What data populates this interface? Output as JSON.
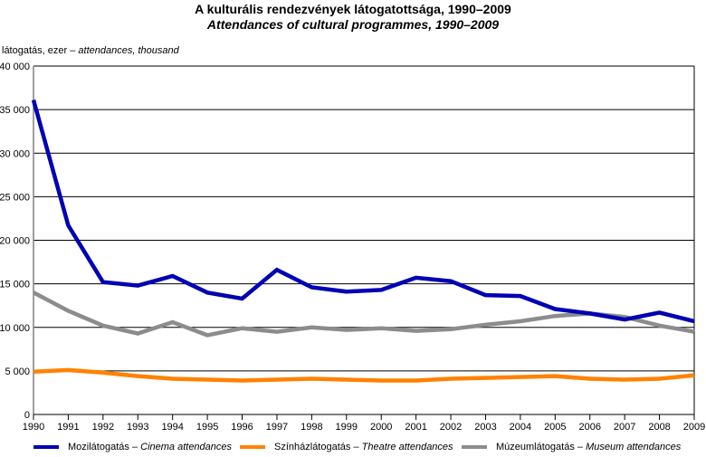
{
  "chart_data": {
    "type": "line",
    "title": "A kulturális rendezvények látogatottsága, 1990–2009",
    "subtitle": "Attendances of cultural programmes, 1990–2009",
    "ylabel": "látogatás, ezer",
    "ylabel_en": "attendances, thousand",
    "xlabel": "",
    "ylim": [
      0,
      40000
    ],
    "yticks": [
      0,
      5000,
      10000,
      15000,
      20000,
      25000,
      30000,
      35000,
      40000
    ],
    "ytick_labels": [
      "0",
      "5 000",
      "10 000",
      "15 000",
      "20 000",
      "25 000",
      "30 000",
      "35 000",
      "40 000"
    ],
    "grid": true,
    "legend_position": "bottom",
    "x": [
      "1990",
      "1991",
      "1992",
      "1993",
      "1994",
      "1995",
      "1996",
      "1997",
      "1998",
      "1999",
      "2000",
      "2001",
      "2002",
      "2003",
      "2004",
      "2005",
      "2006",
      "2007",
      "2008",
      "2009"
    ],
    "series": [
      {
        "name": "Mozilátogatás",
        "name_en": "Cinema attendances",
        "color": "#0000b4",
        "values": [
          36100,
          21700,
          15200,
          14800,
          15900,
          14000,
          13300,
          16600,
          14600,
          14100,
          14300,
          15700,
          15300,
          13700,
          13600,
          12100,
          11600,
          10900,
          11700,
          10700
        ]
      },
      {
        "name": "Színházlátogatás",
        "name_en": "Theatre attendances",
        "color": "#ff8200",
        "values": [
          4900,
          5100,
          4800,
          4400,
          4100,
          4000,
          3900,
          4000,
          4100,
          4000,
          3900,
          3900,
          4100,
          4200,
          4300,
          4400,
          4100,
          4000,
          4100,
          4500
        ]
      },
      {
        "name": "Múzeumlátogatás",
        "name_en": "Museum attendances",
        "color": "#8c8c8c",
        "values": [
          14000,
          11900,
          10200,
          9300,
          10600,
          9100,
          9900,
          9500,
          10000,
          9700,
          9900,
          9600,
          9800,
          10300,
          10700,
          11300,
          11600,
          11200,
          10200,
          9500
        ]
      }
    ]
  },
  "legend_separator": "–"
}
